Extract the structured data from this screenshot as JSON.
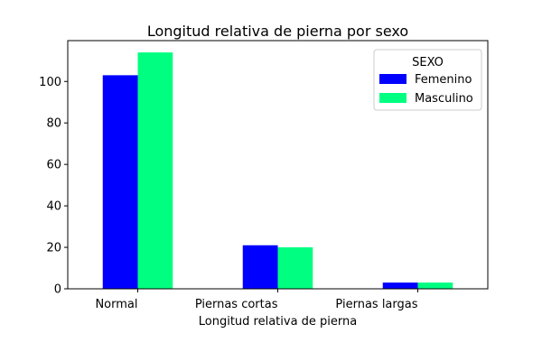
{
  "chart_data": {
    "type": "bar",
    "title": "Longitud relativa de pierna por sexo",
    "xlabel": "Longitud relativa de pierna",
    "ylabel": "",
    "categories": [
      "Normal",
      "Piernas cortas",
      "Piernas largas"
    ],
    "series": [
      {
        "name": "Femenino",
        "values": [
          103,
          21,
          3
        ],
        "color": "#0000ff"
      },
      {
        "name": "Masculino",
        "values": [
          114,
          20,
          3
        ],
        "color": "#00ff80"
      }
    ],
    "ylim": [
      0,
      119.7
    ],
    "yticks": [
      0,
      20,
      40,
      60,
      80,
      100
    ],
    "legend": {
      "title": "SEXO",
      "placement": "top-right"
    },
    "grid": false
  }
}
